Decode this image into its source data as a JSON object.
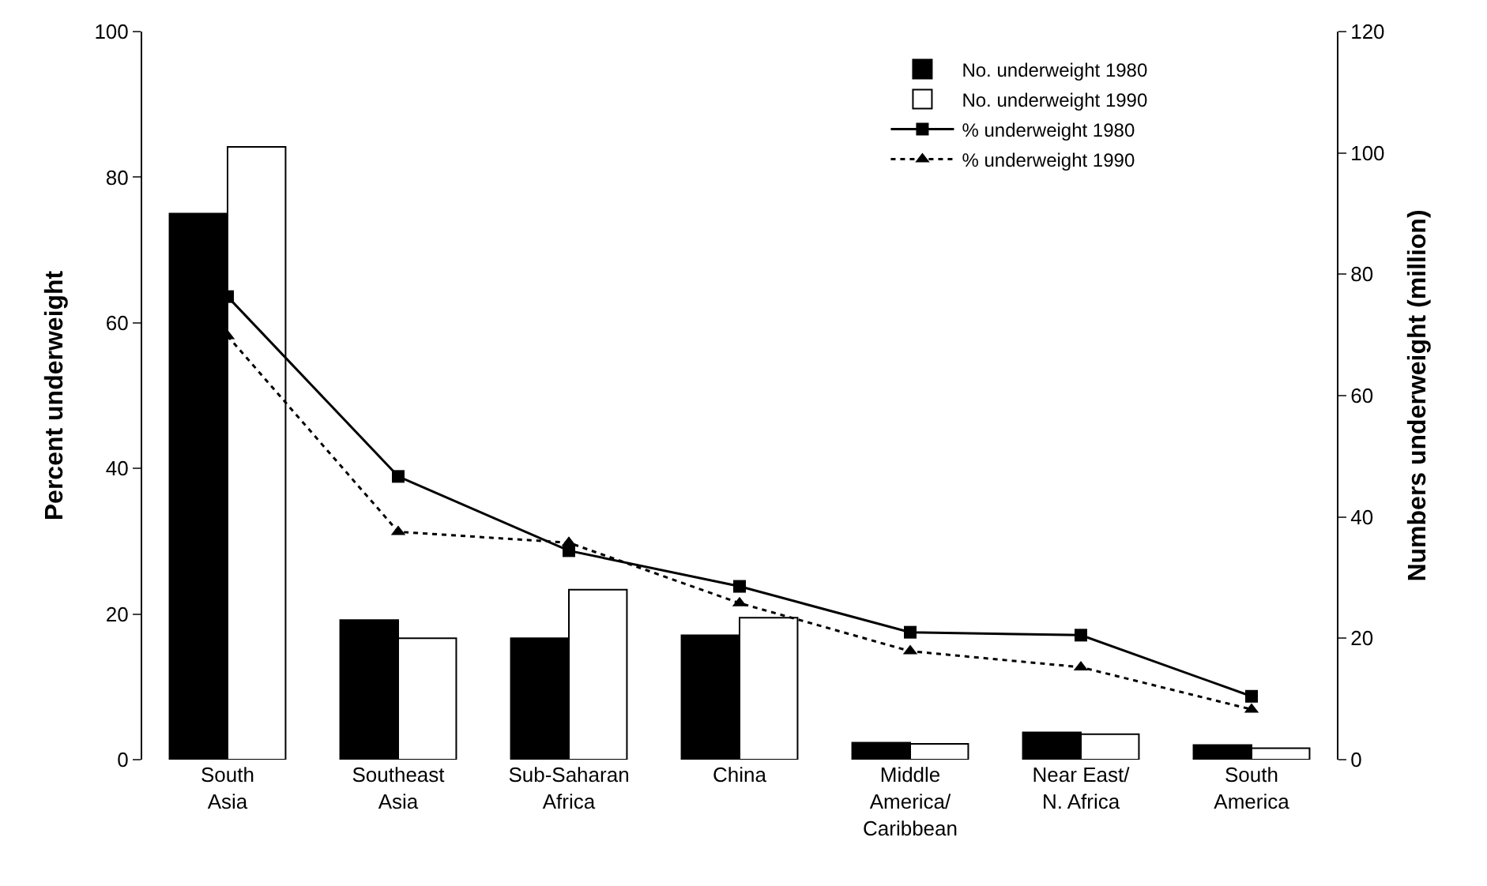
{
  "chart_data": {
    "type": "bar",
    "ylabel": "Percent underweight",
    "y2label": "Numbers underweight (million)",
    "categories": [
      "South\nAsia",
      "Southeast\nAsia",
      "Sub-Saharan\nAfrica",
      "China",
      "Middle\nAmerica/\nCaribbean",
      "Near East/\nN. Africa",
      "South\nAmerica"
    ],
    "series": [
      {
        "name": "No. underweight 1980",
        "axis": "y2",
        "color": "#000000",
        "values": [
          90,
          23,
          20,
          20.5,
          2.8,
          4.5,
          2.4
        ]
      },
      {
        "name": "No. underweight 1990",
        "axis": "y2",
        "color": "#ffffff",
        "values": [
          101,
          20,
          28,
          23.4,
          2.6,
          4.2,
          1.9
        ]
      },
      {
        "name": "% underweight 1980",
        "type": "line",
        "color": "#000000",
        "marker": "square",
        "line_style": "solid",
        "values": [
          63.6,
          38.9,
          28.7,
          23.8,
          17.5,
          17.1,
          8.7
        ]
      },
      {
        "name": "% underweight 1990",
        "type": "line",
        "color": "#000000",
        "marker": "triangle",
        "line_style": "dotted",
        "values": [
          58.2,
          31.3,
          29.8,
          21.5,
          14.9,
          12.7,
          6.9
        ]
      }
    ],
    "ylim": [
      0,
      100
    ],
    "yticks": [
      0,
      20,
      40,
      60,
      80,
      100
    ],
    "y2lim": [
      0,
      120
    ],
    "y2ticks": [
      0,
      20,
      40,
      60,
      80,
      100,
      120
    ],
    "legend": "top right"
  }
}
